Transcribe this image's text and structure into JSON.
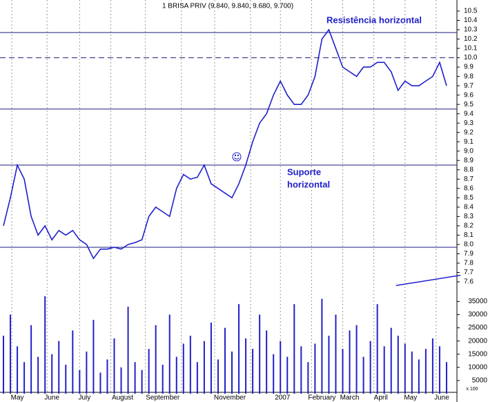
{
  "chart_data": {
    "type": "line",
    "title": "1 BRISA PRIV (9.840, 9.840, 9.680, 9.700)",
    "annotations": {
      "resistance": "Resistência horizontal",
      "support": [
        "Suporte",
        "horizontal"
      ]
    },
    "volume_unit": "x 100",
    "xlim": [
      0,
      66
    ],
    "xticks": [
      {
        "value": 2.5,
        "label": "May"
      },
      {
        "value": 7.5,
        "label": "June"
      },
      {
        "value": 12.2,
        "label": "July"
      },
      {
        "value": 17.7,
        "label": "August"
      },
      {
        "value": 23.5,
        "label": "September"
      },
      {
        "value": 33.2,
        "label": "November"
      },
      {
        "value": 40.8,
        "label": "2007"
      },
      {
        "value": 46.5,
        "label": "February"
      },
      {
        "value": 50.5,
        "label": "March"
      },
      {
        "value": 55,
        "label": "April"
      },
      {
        "value": 59.3,
        "label": "May"
      },
      {
        "value": 63.8,
        "label": "June"
      }
    ],
    "xgrid": [
      1.7,
      6.8,
      11.5,
      16,
      21,
      26.2,
      31,
      36.2,
      40.5,
      45,
      49.5,
      54,
      58.5,
      63
    ],
    "ylim": [
      7.6,
      10.5
    ],
    "yticks": [
      7.6,
      7.7,
      7.8,
      7.9,
      {
        "value": 8,
        "label": "8.0"
      },
      8.1,
      8.2,
      8.3,
      8.4,
      8.5,
      8.6,
      8.7,
      8.8,
      8.9,
      {
        "value": 9,
        "label": "9.0"
      },
      9.1,
      9.2,
      9.3,
      9.4,
      9.5,
      9.6,
      9.7,
      9.8,
      9.9,
      {
        "value": 10,
        "label": "10.0"
      },
      10.1,
      10.2,
      10.3,
      10.4,
      10.5
    ],
    "levels": [
      {
        "value": 10.27,
        "style": "solid"
      },
      {
        "value": 10.0,
        "style": "dashed"
      },
      {
        "value": 9.45,
        "style": "solid"
      },
      {
        "value": 8.85,
        "style": "solid"
      },
      {
        "value": 7.97,
        "style": "solid"
      }
    ],
    "trendline": {
      "x": [
        57.2,
        66.5
      ],
      "y": [
        7.56,
        7.67
      ]
    },
    "series": [
      {
        "name": "BRISA PRIV",
        "color": "#1f1fcc",
        "values": [
          8.2,
          8.5,
          8.85,
          8.7,
          8.3,
          8.1,
          8.2,
          8.05,
          8.15,
          8.1,
          8.15,
          8.05,
          8.0,
          7.85,
          7.95,
          7.95,
          7.97,
          7.95,
          8.0,
          8.02,
          8.05,
          8.3,
          8.4,
          8.35,
          8.3,
          8.6,
          8.75,
          8.7,
          8.72,
          8.85,
          8.65,
          8.6,
          8.55,
          8.5,
          8.65,
          8.85,
          9.1,
          9.3,
          9.4,
          9.6,
          9.75,
          9.6,
          9.5,
          9.5,
          9.6,
          9.8,
          10.2,
          10.3,
          10.1,
          9.9,
          9.85,
          9.8,
          9.9,
          9.9,
          9.95,
          9.95,
          9.85,
          9.65,
          9.75,
          9.7,
          9.7,
          9.75,
          9.8,
          9.95,
          9.7
        ]
      },
      {
        "name": "Volume",
        "color": "#2020c8",
        "axis": "y2",
        "values": [
          22000,
          30000,
          18000,
          12000,
          26000,
          14000,
          37000,
          15000,
          20000,
          11000,
          24000,
          9000,
          16000,
          28000,
          8000,
          13000,
          21000,
          10000,
          33000,
          12000,
          9000,
          17000,
          26000,
          11000,
          30000,
          14000,
          19000,
          22000,
          12000,
          20000,
          27000,
          13000,
          25000,
          16000,
          34000,
          21000,
          17000,
          30000,
          24000,
          15000,
          20000,
          14000,
          34000,
          18000,
          12000,
          19000,
          36000,
          22000,
          30000,
          17000,
          24000,
          26000,
          14000,
          20000,
          34000,
          18000,
          25000,
          22000,
          19000,
          16000,
          13000,
          17000,
          21000,
          18000,
          12000
        ]
      }
    ],
    "y2lim": [
      0,
      38000
    ],
    "y2ticks": [
      5000,
      10000,
      15000,
      20000,
      25000,
      30000,
      35000
    ]
  }
}
